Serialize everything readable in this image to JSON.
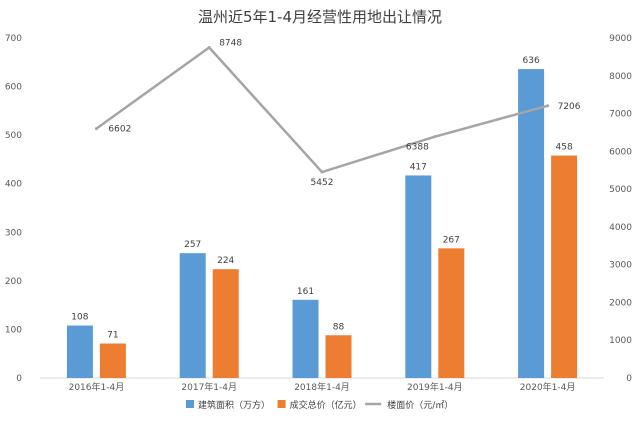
{
  "chart_data": {
    "type": "bar",
    "title": "温州近5年1-4月经营性用地出让情况",
    "categories": [
      "2016年1-4月",
      "2017年1-4月",
      "2018年1-4月",
      "2019年1-4月",
      "2020年1-4月"
    ],
    "series": [
      {
        "name": "建筑面积（万方）",
        "axis": "left",
        "type": "bar",
        "color": "#5B9BD5",
        "values": [
          108,
          257,
          161,
          417,
          636
        ]
      },
      {
        "name": "成交总价（亿元）",
        "axis": "left",
        "type": "bar",
        "color": "#ED7D31",
        "values": [
          71,
          224,
          88,
          267,
          458
        ]
      },
      {
        "name": "楼面价（元/㎡）",
        "axis": "right",
        "type": "line",
        "color": "#A5A5A5",
        "values": [
          6602,
          8748,
          5452,
          6388,
          7206
        ]
      }
    ],
    "ylim_left": [
      0,
      700
    ],
    "yticks_left": [
      0,
      100,
      200,
      300,
      400,
      500,
      600,
      700
    ],
    "ylim_right": [
      0,
      9000
    ],
    "yticks_right": [
      0,
      1000,
      2000,
      3000,
      4000,
      5000,
      6000,
      7000,
      8000,
      9000
    ],
    "grid": false,
    "legend_position": "bottom-right"
  }
}
